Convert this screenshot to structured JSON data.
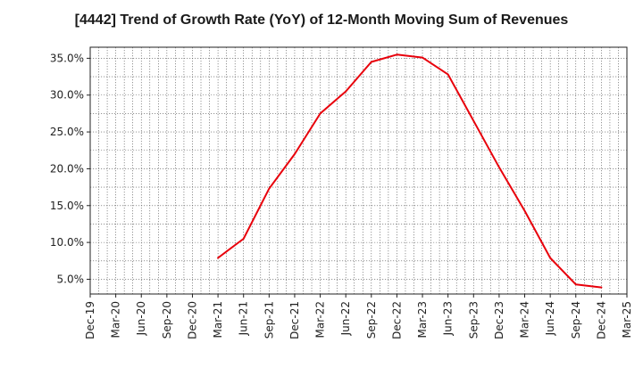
{
  "chart_data": {
    "type": "line",
    "title": "[4442]  Trend of Growth Rate (YoY) of 12-Month Moving Sum of Revenues",
    "xlabel": "",
    "ylabel": "",
    "x_categories": [
      "Dec-19",
      "Mar-20",
      "Jun-20",
      "Sep-20",
      "Dec-20",
      "Mar-21",
      "Jun-21",
      "Sep-21",
      "Dec-21",
      "Mar-22",
      "Jun-22",
      "Sep-22",
      "Dec-22",
      "Mar-23",
      "Jun-23",
      "Sep-23",
      "Dec-23",
      "Mar-24",
      "Jun-24",
      "Sep-24",
      "Dec-24",
      "Mar-25"
    ],
    "y_ticks": [
      5,
      10,
      15,
      20,
      25,
      30,
      35
    ],
    "y_tick_labels": [
      "5.0%",
      "10.0%",
      "15.0%",
      "20.0%",
      "25.0%",
      "30.0%",
      "35.0%"
    ],
    "ylim": [
      3,
      36.5
    ],
    "grid": true,
    "series": [
      {
        "color": "#e8000b",
        "points": [
          {
            "x": "Mar-21",
            "y": 7.9
          },
          {
            "x": "Jun-21",
            "y": 10.5
          },
          {
            "x": "Sep-21",
            "y": 17.3
          },
          {
            "x": "Dec-21",
            "y": 22.0
          },
          {
            "x": "Mar-22",
            "y": 27.5
          },
          {
            "x": "Jun-22",
            "y": 30.5
          },
          {
            "x": "Sep-22",
            "y": 34.5
          },
          {
            "x": "Dec-22",
            "y": 35.5
          },
          {
            "x": "Mar-23",
            "y": 35.1
          },
          {
            "x": "Jun-23",
            "y": 32.8
          },
          {
            "x": "Sep-23",
            "y": 26.5
          },
          {
            "x": "Dec-23",
            "y": 20.2
          },
          {
            "x": "Mar-24",
            "y": 14.3
          },
          {
            "x": "Jun-24",
            "y": 7.9
          },
          {
            "x": "Sep-24",
            "y": 4.3
          },
          {
            "x": "Dec-24",
            "y": 3.9
          }
        ]
      }
    ]
  }
}
